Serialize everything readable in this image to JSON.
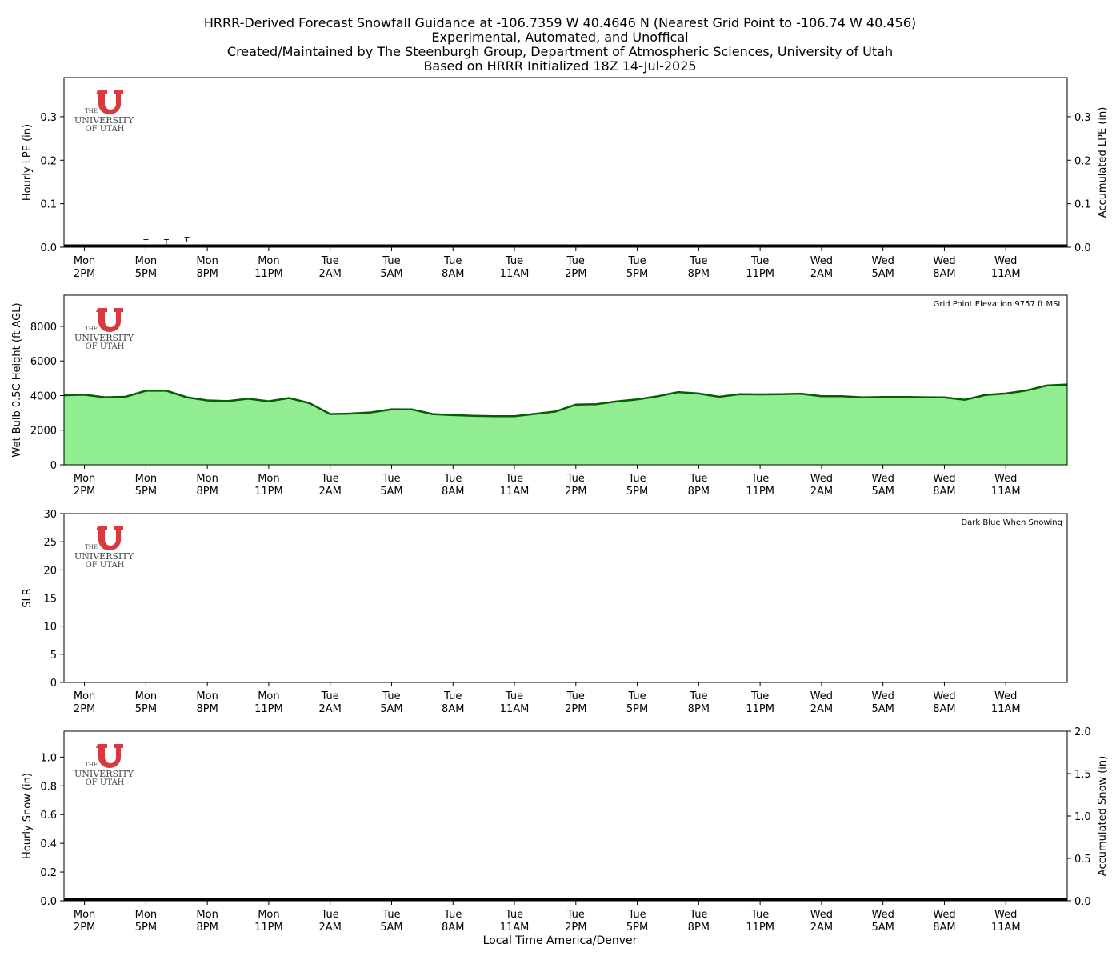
{
  "title_lines": [
    "HRRR-Derived Forecast Snowfall Guidance at -106.7359 W 40.4646 N (Nearest Grid Point to -106.74 W 40.456)",
    "Experimental, Automated, and Unoffical",
    "Created/Maintained by The Steenburgh Group, Department of Atmospheric Sciences, University of Utah",
    "Based on HRRR Initialized 18Z 14-Jul-2025"
  ],
  "x_axis_label": "Local Time America/Denver",
  "x_tick_labels": [
    [
      "Mon",
      "2PM"
    ],
    [
      "Mon",
      "5PM"
    ],
    [
      "Mon",
      "8PM"
    ],
    [
      "Mon",
      "11PM"
    ],
    [
      "Tue",
      "2AM"
    ],
    [
      "Tue",
      "5AM"
    ],
    [
      "Tue",
      "8AM"
    ],
    [
      "Tue",
      "11AM"
    ],
    [
      "Tue",
      "2PM"
    ],
    [
      "Tue",
      "5PM"
    ],
    [
      "Tue",
      "8PM"
    ],
    [
      "Tue",
      "11PM"
    ],
    [
      "Wed",
      "2AM"
    ],
    [
      "Wed",
      "5AM"
    ],
    [
      "Wed",
      "8AM"
    ],
    [
      "Wed",
      "11AM"
    ]
  ],
  "logo": {
    "name": "university-of-utah-logo",
    "text_lines": [
      "THE",
      "UNIVERSITY",
      "OF UTAH"
    ],
    "color": "#d9383e"
  },
  "chart_data": [
    {
      "type": "bar",
      "ylabel": "Hourly LPE (in)",
      "ylabel_right": "Accumulated LPE (in)",
      "ylim": [
        0,
        0.39
      ],
      "yticks": [
        0.0,
        0.1,
        0.2,
        0.3
      ],
      "x_hours": [
        -1,
        48
      ],
      "bars": [],
      "trace_labels": [
        {
          "x": 3,
          "text": "T"
        },
        {
          "x": 4,
          "text": "T"
        },
        {
          "x": 5,
          "text": "T"
        }
      ],
      "accumulated_line": {
        "x": [
          -1,
          48
        ],
        "y": [
          0.001,
          0.001
        ],
        "color": "#000000"
      }
    },
    {
      "type": "area",
      "ylabel": "Wet Bulb 0.5C Height (ft AGL)",
      "annotation": "Grid Point Elevation 9757 ft MSL",
      "ylim": [
        0,
        9800
      ],
      "yticks": [
        0,
        2000,
        4000,
        6000,
        8000
      ],
      "x_hours": [
        -1,
        48
      ],
      "series": {
        "x": [
          -1,
          0,
          1,
          2,
          3,
          4,
          5,
          6,
          7,
          8,
          9,
          10,
          11,
          12,
          13,
          14,
          15,
          16,
          17,
          18,
          19,
          20,
          21,
          22,
          23,
          24,
          25,
          26,
          27,
          28,
          29,
          30,
          31,
          32,
          33,
          34,
          35,
          36,
          37,
          38,
          39,
          40,
          41,
          42,
          43,
          44,
          45,
          46,
          47,
          48
        ],
        "values": [
          4020,
          4050,
          3900,
          3930,
          4280,
          4280,
          3900,
          3720,
          3680,
          3820,
          3670,
          3860,
          3560,
          2930,
          2960,
          3030,
          3210,
          3200,
          2930,
          2870,
          2830,
          2810,
          2810,
          2940,
          3080,
          3480,
          3500,
          3660,
          3780,
          3960,
          4200,
          4120,
          3930,
          4080,
          4070,
          4080,
          4110,
          3960,
          3960,
          3890,
          3920,
          3920,
          3900,
          3890,
          3760,
          4030,
          4120,
          4290,
          4580,
          4640
        ],
        "line_color": "#0a5a0a",
        "fill_color": "#90ee90"
      }
    },
    {
      "type": "bar",
      "ylabel": "SLR",
      "annotation": "Dark Blue When Snowing",
      "ylim": [
        0,
        30
      ],
      "yticks": [
        0,
        5,
        10,
        15,
        20,
        25,
        30
      ],
      "x_hours": [
        -1,
        48
      ],
      "bars": []
    },
    {
      "type": "bar",
      "ylabel": "Hourly Snow (in)",
      "ylabel_right": "Accumulated Snow (in)",
      "ylim": [
        0,
        1.18
      ],
      "yticks": [
        0.0,
        0.2,
        0.4,
        0.6,
        0.8,
        1.0
      ],
      "ylim_right": [
        0,
        2.0
      ],
      "yticks_right": [
        0.0,
        0.5,
        1.0,
        1.5,
        2.0
      ],
      "x_hours": [
        -1,
        48
      ],
      "bars": [],
      "accumulated_line": {
        "x": [
          -1,
          48
        ],
        "y": [
          0,
          0
        ],
        "color": "#000000"
      }
    }
  ]
}
